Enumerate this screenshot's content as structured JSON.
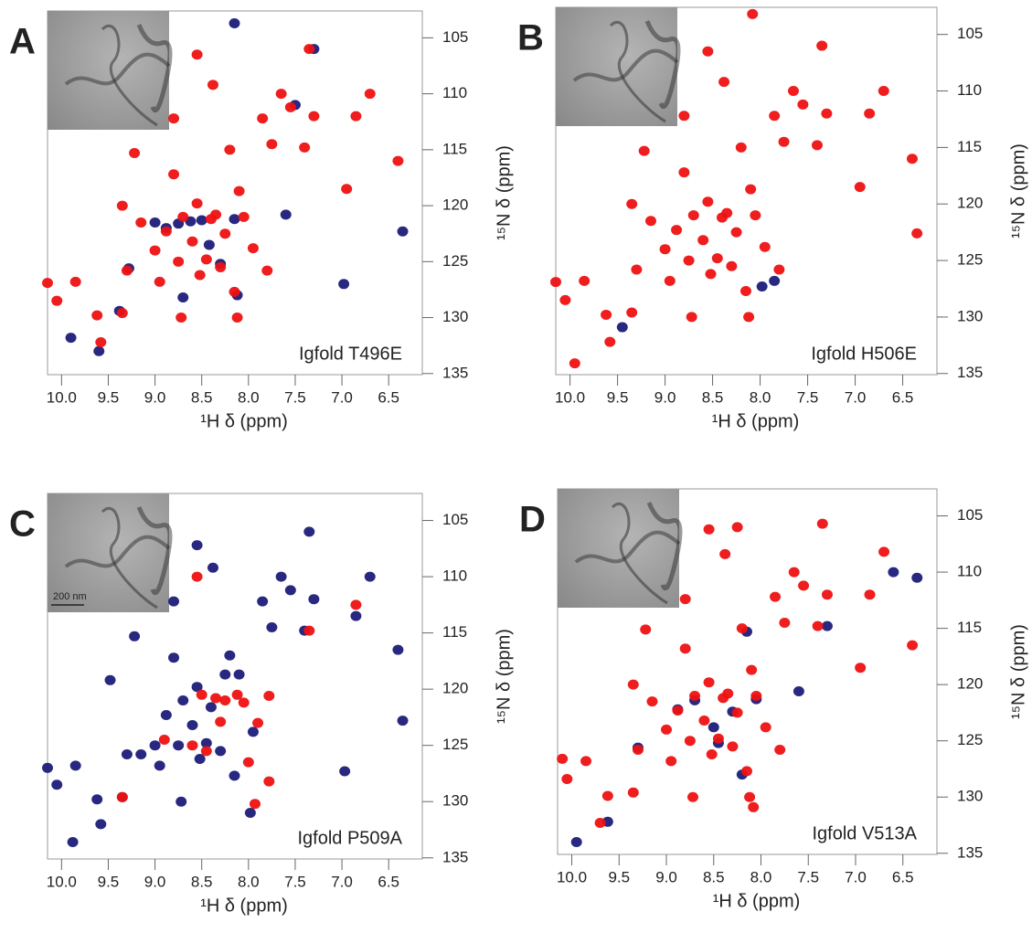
{
  "chart_data": [
    {
      "type": "scatter",
      "panel_label": "A",
      "annotation": "Igfold T496E",
      "x_label": "¹H δ (ppm)",
      "y_label": "¹⁵N δ (ppm)",
      "xlim": [
        10.15,
        6.14
      ],
      "ylim": [
        102.6,
        135.1
      ],
      "xticks": [
        {
          "value": 10,
          "label": "10.0"
        },
        9.5,
        {
          "value": 9,
          "label": "9.0"
        },
        8.5,
        {
          "value": 8,
          "label": "8.0"
        },
        7.5,
        {
          "value": 7,
          "label": "7.0"
        },
        6.5
      ],
      "yticks": [
        105,
        110,
        115,
        120,
        125,
        130,
        135
      ],
      "series": [
        {
          "color": "#1c1c7a",
          "x": [
            9.9,
            9.6,
            9.38,
            9.28,
            9.0,
            8.88,
            8.75,
            8.62,
            8.5,
            8.42,
            8.3,
            8.15,
            8.12,
            7.6,
            7.5,
            7.3,
            6.98,
            6.35,
            8.15,
            8.7
          ],
          "values": [
            131.8,
            133.0,
            129.4,
            125.6,
            121.5,
            122.0,
            121.6,
            121.4,
            121.3,
            123.5,
            125.2,
            103.7,
            128.0,
            120.8,
            111.0,
            106.0,
            127.0,
            122.3,
            121.2,
            128.2
          ]
        },
        {
          "color": "#ee1111",
          "x": [
            10.15,
            10.05,
            9.85,
            9.62,
            9.58,
            9.35,
            9.3,
            9.22,
            9.35,
            9.15,
            9.0,
            8.95,
            8.88,
            8.8,
            8.75,
            8.72,
            8.7,
            8.6,
            8.55,
            8.52,
            8.45,
            8.4,
            8.35,
            8.3,
            8.25,
            8.2,
            8.15,
            8.12,
            8.1,
            8.05,
            7.95,
            7.85,
            7.8,
            7.75,
            7.65,
            7.55,
            7.4,
            7.35,
            7.3,
            6.95,
            6.85,
            6.7,
            6.4,
            8.55,
            8.38,
            8.8
          ],
          "values": [
            126.9,
            128.5,
            126.8,
            129.8,
            132.2,
            129.6,
            125.8,
            115.3,
            120,
            121.5,
            124,
            126.8,
            122.3,
            117.2,
            125,
            130,
            121,
            123.2,
            119.8,
            126.2,
            124.8,
            121.2,
            120.8,
            125.5,
            122.5,
            115,
            127.7,
            130,
            118.7,
            121,
            123.8,
            112.2,
            125.8,
            114.5,
            110,
            111.2,
            114.8,
            106,
            112,
            118.5,
            112,
            110,
            116,
            106.5,
            109.2,
            112.2
          ]
        }
      ]
    },
    {
      "type": "scatter",
      "panel_label": "B",
      "annotation": "Igfold H506E",
      "x_label": "¹H δ (ppm)",
      "y_label": "¹⁵N δ (ppm)",
      "xlim": [
        10.15,
        6.14
      ],
      "ylim": [
        102.6,
        135.1
      ],
      "xticks": [
        {
          "value": 10,
          "label": "10.0"
        },
        9.5,
        {
          "value": 9,
          "label": "9.0"
        },
        8.5,
        {
          "value": 8,
          "label": "8.0"
        },
        7.5,
        {
          "value": 7,
          "label": "7.0"
        },
        6.5
      ],
      "yticks": [
        105,
        110,
        115,
        120,
        125,
        130,
        135
      ],
      "series": [
        {
          "color": "#1c1c7a",
          "x": [
            7.98,
            7.85,
            9.45
          ],
          "values": [
            127.3,
            126.8,
            130.9
          ]
        },
        {
          "color": "#ee1111",
          "x": [
            10.15,
            10.05,
            9.85,
            9.62,
            9.58,
            9.35,
            9.3,
            9.22,
            9.35,
            9.15,
            9.0,
            8.95,
            8.88,
            8.8,
            8.75,
            8.72,
            8.7,
            8.6,
            8.55,
            8.52,
            8.45,
            8.4,
            8.35,
            8.3,
            8.25,
            8.2,
            8.15,
            8.12,
            8.1,
            8.05,
            7.95,
            7.85,
            7.8,
            7.75,
            7.65,
            7.55,
            7.4,
            7.35,
            7.3,
            6.95,
            6.85,
            6.7,
            6.4,
            8.55,
            8.38,
            8.8,
            8.08,
            9.95,
            6.35
          ],
          "values": [
            126.9,
            128.5,
            126.8,
            129.8,
            132.2,
            129.6,
            125.8,
            115.3,
            120,
            121.5,
            124,
            126.8,
            122.3,
            117.2,
            125,
            130,
            121,
            123.2,
            119.8,
            126.2,
            124.8,
            121.2,
            120.8,
            125.5,
            122.5,
            115,
            127.7,
            130,
            118.7,
            121,
            123.8,
            112.2,
            125.8,
            114.5,
            110,
            111.2,
            114.8,
            106,
            112,
            118.5,
            112,
            110,
            116,
            106.5,
            109.2,
            112.2,
            103.2,
            134.1,
            122.6
          ]
        }
      ]
    },
    {
      "type": "scatter",
      "panel_label": "C",
      "annotation": "Igfold P509A",
      "x_label": "¹H δ (ppm)",
      "y_label": "¹⁵N δ (ppm)",
      "scale_bar": "200 nm",
      "xlim": [
        10.15,
        6.14
      ],
      "ylim": [
        102.6,
        135.1
      ],
      "xticks": [
        {
          "value": 10,
          "label": "10.0"
        },
        9.5,
        {
          "value": 9,
          "label": "9.0"
        },
        8.5,
        {
          "value": 8,
          "label": "8.0"
        },
        7.5,
        {
          "value": 7,
          "label": "7.0"
        },
        6.5
      ],
      "yticks": [
        105,
        110,
        115,
        120,
        125,
        130,
        135
      ],
      "series": [
        {
          "color": "#1c1c7a",
          "x": [
            10.15,
            10.05,
            9.85,
            9.62,
            9.58,
            9.35,
            9.3,
            9.22,
            9.48,
            9.15,
            9.0,
            8.95,
            8.88,
            8.8,
            8.75,
            8.72,
            8.7,
            8.6,
            8.55,
            8.52,
            8.45,
            8.4,
            8.3,
            8.25,
            8.2,
            8.15,
            8.1,
            7.98,
            7.95,
            7.85,
            7.75,
            7.65,
            7.55,
            7.4,
            7.35,
            7.3,
            6.97,
            6.85,
            6.7,
            6.4,
            8.55,
            8.38,
            8.8,
            9.88,
            6.35
          ],
          "values": [
            127,
            128.5,
            126.8,
            129.8,
            132,
            129.6,
            125.8,
            115.3,
            119.2,
            125.8,
            125,
            126.8,
            122.3,
            117.2,
            125,
            130,
            121,
            123.2,
            119.8,
            126.2,
            124.8,
            121.6,
            125.5,
            118.7,
            117,
            127.7,
            118.7,
            131,
            123.8,
            112.2,
            114.5,
            110,
            111.2,
            114.8,
            106,
            112,
            127.3,
            113.5,
            110,
            116.5,
            107.2,
            109.2,
            112.2,
            133.6,
            122.8
          ]
        },
        {
          "color": "#ee1111",
          "x": [
            8.5,
            8.35,
            8.25,
            8.12,
            8.05,
            7.9,
            8.45,
            8.6,
            7.93,
            7.35,
            6.85,
            8.9,
            9.35,
            8.55,
            8.0,
            7.78,
            8.3,
            7.78
          ],
          "values": [
            120.5,
            120.8,
            121,
            120.5,
            121.2,
            123,
            125.5,
            125,
            130.2,
            114.8,
            112.5,
            124.5,
            129.6,
            110,
            126.5,
            128.2,
            122.9,
            120.6
          ]
        }
      ]
    },
    {
      "type": "scatter",
      "panel_label": "D",
      "annotation": "Igfold V513A",
      "x_label": "¹H δ (ppm)",
      "y_label": "¹⁵N δ (ppm)",
      "xlim": [
        10.15,
        6.14
      ],
      "ylim": [
        102.6,
        135.1
      ],
      "xticks": [
        {
          "value": 10,
          "label": "10.0"
        },
        9.5,
        {
          "value": 9,
          "label": "9.0"
        },
        8.5,
        {
          "value": 8,
          "label": "8.0"
        },
        7.5,
        {
          "value": 7,
          "label": "7.0"
        },
        6.5
      ],
      "yticks": [
        105,
        110,
        115,
        120,
        125,
        130,
        135
      ],
      "series": [
        {
          "color": "#1c1c7a",
          "x": [
            9.95,
            9.62,
            9.3,
            8.88,
            8.7,
            8.45,
            8.3,
            8.2,
            7.6,
            7.3,
            6.35,
            8.15,
            6.6,
            8.5,
            8.05
          ],
          "values": [
            134,
            132.2,
            125.6,
            122.2,
            121.4,
            125.2,
            122.4,
            128,
            120.6,
            114.8,
            110.5,
            115.3,
            110,
            123.8,
            121.3
          ]
        },
        {
          "color": "#ee1111",
          "x": [
            10.1,
            10.05,
            9.85,
            9.62,
            9.7,
            9.35,
            9.3,
            9.22,
            9.35,
            9.15,
            9.0,
            8.95,
            8.88,
            8.8,
            8.75,
            8.72,
            8.7,
            8.6,
            8.55,
            8.52,
            8.45,
            8.4,
            8.35,
            8.3,
            8.25,
            8.2,
            8.15,
            8.12,
            8.1,
            8.05,
            7.95,
            7.85,
            7.8,
            7.75,
            7.65,
            7.55,
            7.4,
            7.35,
            7.3,
            6.95,
            6.85,
            6.7,
            6.4,
            8.55,
            8.38,
            8.8,
            8.08,
            8.25
          ],
          "values": [
            126.6,
            128.4,
            126.8,
            129.9,
            132.3,
            129.6,
            125.8,
            115.1,
            120,
            121.5,
            124,
            126.8,
            122.3,
            116.8,
            125,
            130,
            121,
            123.2,
            119.8,
            126.2,
            124.8,
            121.2,
            120.8,
            125.5,
            122.5,
            115,
            127.7,
            130,
            118.7,
            121,
            123.8,
            112.2,
            125.8,
            114.5,
            110,
            111.2,
            114.8,
            105.7,
            112,
            118.5,
            112,
            108.2,
            116.5,
            106.2,
            108.4,
            112.4,
            130.9,
            106
          ]
        }
      ]
    }
  ]
}
